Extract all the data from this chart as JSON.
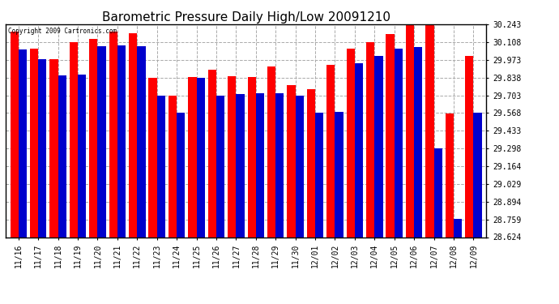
{
  "title": "Barometric Pressure Daily High/Low 20091210",
  "copyright": "Copyright 2009 Cartronics.com",
  "ylabel_values": [
    28.624,
    28.759,
    28.894,
    29.029,
    29.164,
    29.298,
    29.433,
    29.568,
    29.703,
    29.838,
    29.973,
    30.108,
    30.243
  ],
  "ymin": 28.624,
  "ymax": 30.243,
  "dates": [
    "11/16",
    "11/17",
    "11/18",
    "11/19",
    "11/20",
    "11/21",
    "11/22",
    "11/23",
    "11/24",
    "11/25",
    "11/26",
    "11/27",
    "11/28",
    "11/29",
    "11/30",
    "12/01",
    "12/02",
    "12/03",
    "12/04",
    "12/05",
    "12/06",
    "12/07",
    "12/08",
    "12/09"
  ],
  "highs": [
    30.185,
    30.055,
    29.975,
    30.108,
    30.135,
    30.19,
    30.175,
    29.838,
    29.703,
    29.845,
    29.9,
    29.85,
    29.84,
    29.92,
    29.78,
    29.75,
    29.935,
    30.055,
    30.108,
    30.168,
    30.243,
    30.243,
    29.565,
    30.005
  ],
  "lows": [
    30.05,
    29.975,
    29.855,
    29.86,
    30.075,
    30.08,
    30.075,
    29.703,
    29.568,
    29.838,
    29.703,
    29.71,
    29.72,
    29.72,
    29.703,
    29.568,
    29.575,
    29.945,
    30.005,
    30.055,
    30.07,
    29.298,
    28.76,
    29.568
  ],
  "high_color": "#FF0000",
  "low_color": "#0000CC",
  "bg_color": "#FFFFFF",
  "grid_color": "#AAAAAA",
  "title_fontsize": 11,
  "bar_width": 0.42,
  "title_color": "#000000"
}
